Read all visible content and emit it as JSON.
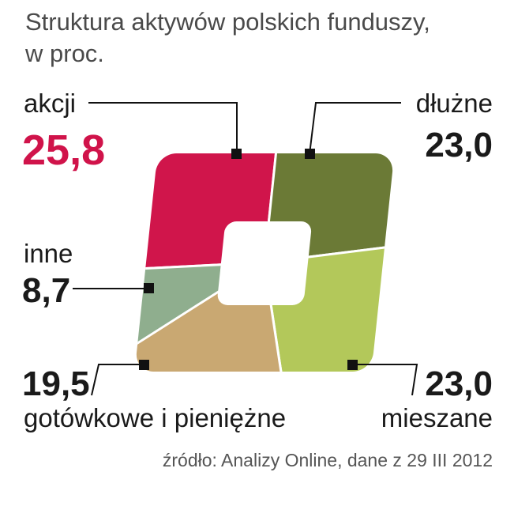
{
  "chart_data": {
    "type": "pie",
    "title": "Struktura aktywów polskich funduszy,\nw proc.",
    "categories": [
      "akcji",
      "dłużne",
      "mieszane",
      "gotówkowe i pieniężne",
      "inne"
    ],
    "values": [
      25.8,
      23.0,
      23.0,
      19.5,
      8.7
    ],
    "value_labels": [
      "25,8",
      "23,0",
      "23,0",
      "19,5",
      "8,7"
    ],
    "colors": [
      "#d0154b",
      "#6b7a36",
      "#b3c85a",
      "#c9a872",
      "#8fae8e"
    ],
    "source": "źródło: Analizy Online, dane z 29 III 2012"
  }
}
